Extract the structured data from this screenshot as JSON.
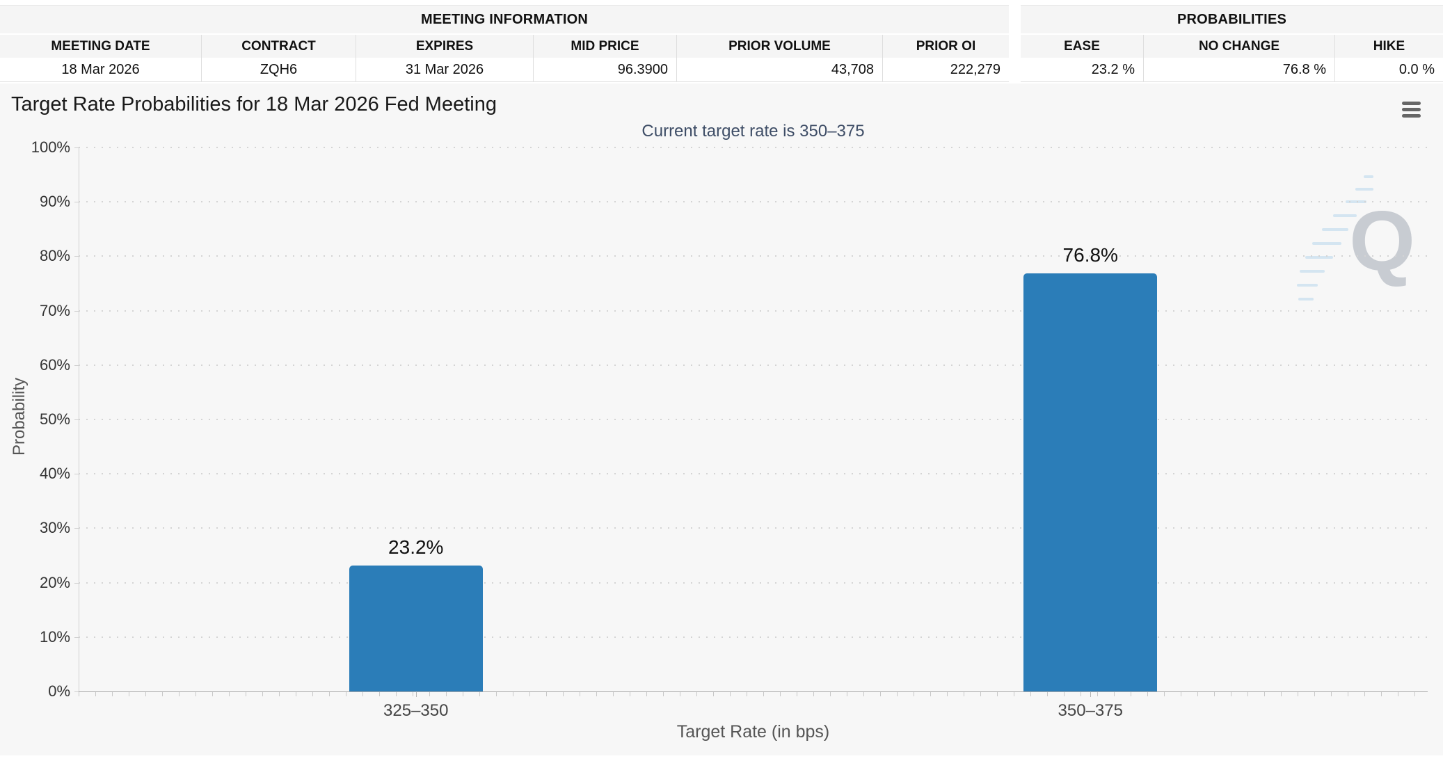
{
  "meeting_information": {
    "title": "MEETING INFORMATION",
    "columns": [
      "MEETING DATE",
      "CONTRACT",
      "EXPIRES",
      "MID PRICE",
      "PRIOR VOLUME",
      "PRIOR OI"
    ],
    "values": [
      "18 Mar 2026",
      "ZQH6",
      "31 Mar 2026",
      "96.3900",
      "43,708",
      "222,279"
    ]
  },
  "probabilities": {
    "title": "PROBABILITIES",
    "columns": [
      "EASE",
      "NO CHANGE",
      "HIKE"
    ],
    "values": [
      "23.2 %",
      "76.8 %",
      "0.0 %"
    ]
  },
  "chart": {
    "title": "Target Rate Probabilities for 18 Mar 2026 Fed Meeting",
    "subtitle": "Current target rate is 350–375",
    "menu_icon": "hamburger-menu-icon",
    "watermark_letter": "Q"
  },
  "chart_data": {
    "type": "bar",
    "categories": [
      "325–350",
      "350–375"
    ],
    "values": [
      23.2,
      76.8
    ],
    "data_labels": [
      "23.2%",
      "76.8%"
    ],
    "series_name": "Probability",
    "title": "Target Rate Probabilities for 18 Mar 2026 Fed Meeting",
    "subtitle": "Current target rate is 350–375",
    "xlabel": "Target Rate (in bps)",
    "ylabel": "Probability",
    "ylim": [
      0,
      100
    ],
    "ytick_step": 10,
    "ytick_labels": [
      "0%",
      "10%",
      "20%",
      "30%",
      "40%",
      "50%",
      "60%",
      "70%",
      "80%",
      "90%",
      "100%"
    ],
    "grid": "dotted horizontal gridlines, legend off",
    "bar_color": "#2b7db8"
  },
  "colors": {
    "bar": "#2b7db8",
    "chart_background": "#f7f7f7",
    "subtitle_text": "#3e4d66",
    "table_header_bg": "#f5f5f5"
  }
}
